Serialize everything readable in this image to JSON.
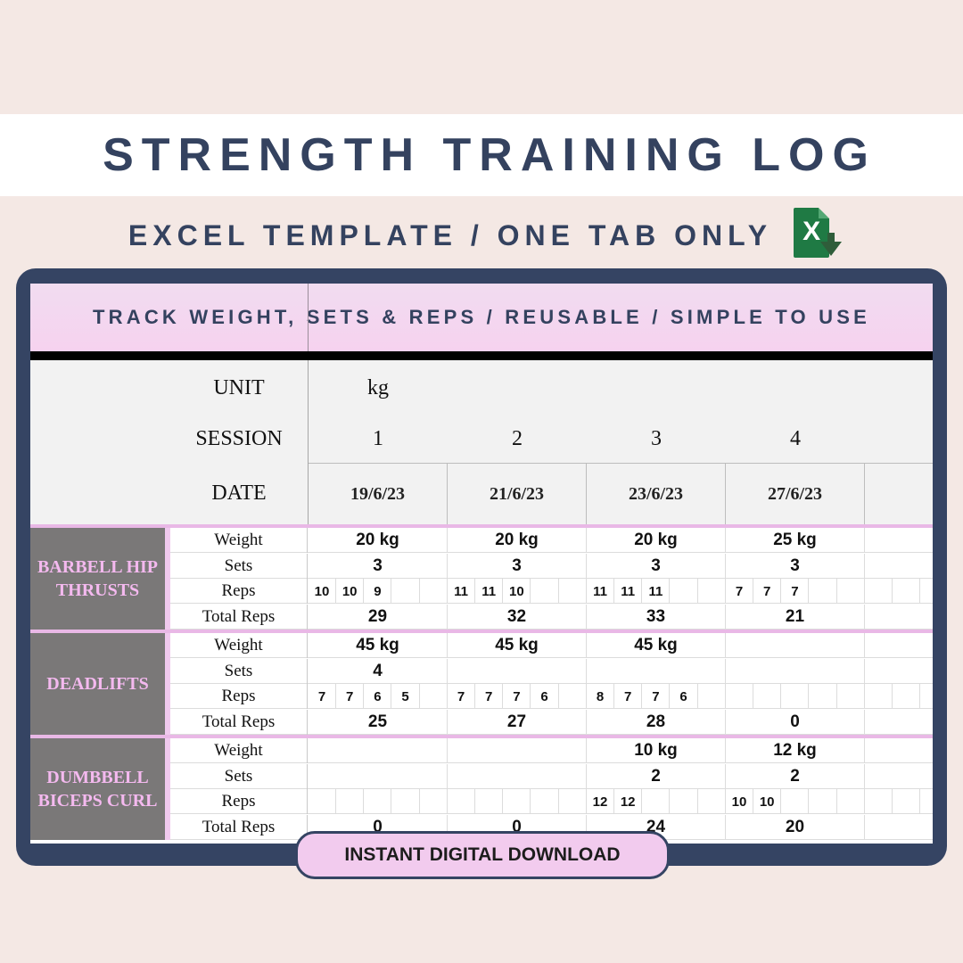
{
  "title": "STRENGTH TRAINING LOG",
  "subtitle": "EXCEL TEMPLATE / ONE TAB ONLY",
  "excel_icon_letter": "X",
  "banner": "TRACK WEIGHT, SETS & REPS / REUSABLE / SIMPLE TO USE",
  "labels": {
    "unit": "UNIT",
    "session": "SESSION",
    "date": "DATE"
  },
  "unit_value": "kg",
  "sessions": [
    "1",
    "2",
    "3",
    "4"
  ],
  "dates": [
    "19/6/23",
    "21/6/23",
    "23/6/23",
    "27/6/23"
  ],
  "row_labels": {
    "weight": "Weight",
    "sets": "Sets",
    "reps": "Reps",
    "total": "Total Reps"
  },
  "exercises": [
    {
      "name_line1": "BARBELL HIP",
      "name_line2": "THRUSTS",
      "weight": [
        "20 kg",
        "20 kg",
        "20 kg",
        "25 kg"
      ],
      "sets": [
        "3",
        "3",
        "3",
        "3"
      ],
      "reps": [
        [
          "10",
          "10",
          "9"
        ],
        [
          "11",
          "11",
          "10"
        ],
        [
          "11",
          "11",
          "11"
        ],
        [
          "7",
          "7",
          "7"
        ]
      ],
      "total": [
        "29",
        "32",
        "33",
        "21"
      ]
    },
    {
      "name_line1": "DEADLIFTS",
      "name_line2": "",
      "weight": [
        "45 kg",
        "45 kg",
        "45 kg",
        ""
      ],
      "sets": [
        "4",
        "",
        "",
        ""
      ],
      "reps": [
        [
          "7",
          "7",
          "6",
          "5"
        ],
        [
          "7",
          "7",
          "7",
          "6"
        ],
        [
          "8",
          "7",
          "7",
          "6"
        ],
        []
      ],
      "total": [
        "25",
        "27",
        "28",
        "0"
      ]
    },
    {
      "name_line1": "DUMBBELL",
      "name_line2": "BICEPS CURL",
      "weight": [
        "",
        "",
        "10 kg",
        "12 kg"
      ],
      "sets": [
        "",
        "",
        "2",
        "2"
      ],
      "reps": [
        [],
        [],
        [
          "12",
          "12"
        ],
        [
          "10",
          "10"
        ]
      ],
      "total": [
        "0",
        "0",
        "24",
        "20"
      ]
    }
  ],
  "cta": "INSTANT DIGITAL DOWNLOAD",
  "colors": {
    "background": "#f4e8e4",
    "navy": "#34425f",
    "pink": "#f2cbee",
    "exercise_block": "#7a7878",
    "excel_green": "#1f7a44"
  }
}
